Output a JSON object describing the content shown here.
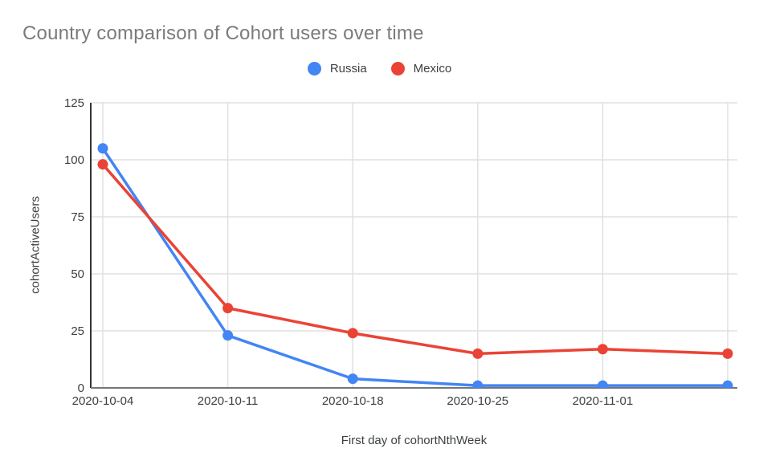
{
  "page": {
    "background": "#ffffff"
  },
  "chart_data": {
    "type": "line",
    "title": "Country comparison of Cohort users over time",
    "xlabel": "First day of cohortNthWeek",
    "ylabel": "cohortActiveUsers",
    "x_tick_labels": [
      "2020-10-04",
      "2020-10-11",
      "2020-10-18",
      "2020-10-25",
      "2020-11-01",
      ""
    ],
    "y_ticks": [
      0,
      25,
      50,
      75,
      100,
      125
    ],
    "ylim": [
      0,
      125
    ],
    "num_points": 6,
    "grid": true,
    "legend_position": "top",
    "series": [
      {
        "name": "Russia",
        "color": "#4285F4",
        "values": [
          105,
          23,
          4,
          1,
          1,
          1
        ]
      },
      {
        "name": "Mexico",
        "color": "#EA4335",
        "values": [
          98,
          35,
          24,
          15,
          17,
          15
        ]
      }
    ]
  },
  "colors": {
    "title": "#7b7b7b",
    "axis_labels": "#3c4043",
    "grid": "#e0e0e0",
    "y_axis_line": "#333333",
    "x_axis_line": "#757575"
  }
}
